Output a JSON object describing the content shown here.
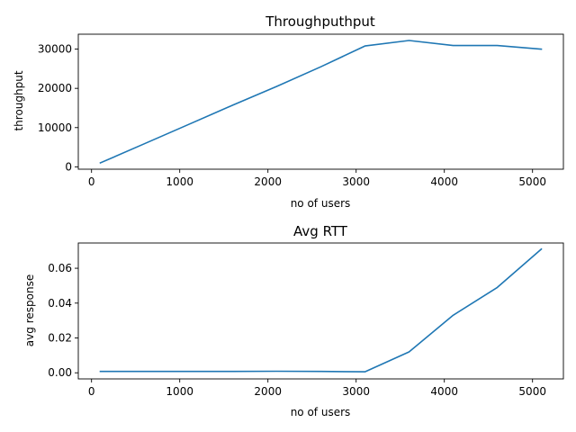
{
  "chart_data": [
    {
      "type": "line",
      "title": "Throughputhput",
      "xlabel": "no of users",
      "ylabel": "throughput",
      "xlim": [
        -150,
        5350
      ],
      "ylim": [
        -600,
        33800
      ],
      "xticks": [
        0,
        1000,
        2000,
        3000,
        4000,
        5000
      ],
      "yticks": [
        0,
        10000,
        20000,
        30000
      ],
      "grid": false,
      "series": [
        {
          "color": "#1f77b4",
          "x": [
            100,
            600,
            1100,
            1600,
            2100,
            2600,
            3100,
            3600,
            4100,
            4600,
            5100
          ],
          "values": [
            1000,
            5900,
            10800,
            15700,
            20500,
            25500,
            30800,
            32200,
            30900,
            30900,
            30000
          ]
        }
      ]
    },
    {
      "type": "line",
      "title": "Avg RTT",
      "xlabel": "no of users",
      "ylabel": "avg response",
      "xlim": [
        -150,
        5350
      ],
      "ylim": [
        -0.0035,
        0.0745
      ],
      "xticks": [
        0,
        1000,
        2000,
        3000,
        4000,
        5000
      ],
      "yticks": [
        0.0,
        0.02,
        0.04,
        0.06
      ],
      "ytick_format": 2,
      "grid": false,
      "series": [
        {
          "color": "#1f77b4",
          "x": [
            100,
            600,
            1100,
            1600,
            2100,
            2600,
            3100,
            3600,
            4100,
            4600,
            5100
          ],
          "values": [
            0.0008,
            0.0008,
            0.0008,
            0.0008,
            0.0009,
            0.0008,
            0.0006,
            0.012,
            0.033,
            0.049,
            0.071
          ]
        }
      ]
    }
  ]
}
